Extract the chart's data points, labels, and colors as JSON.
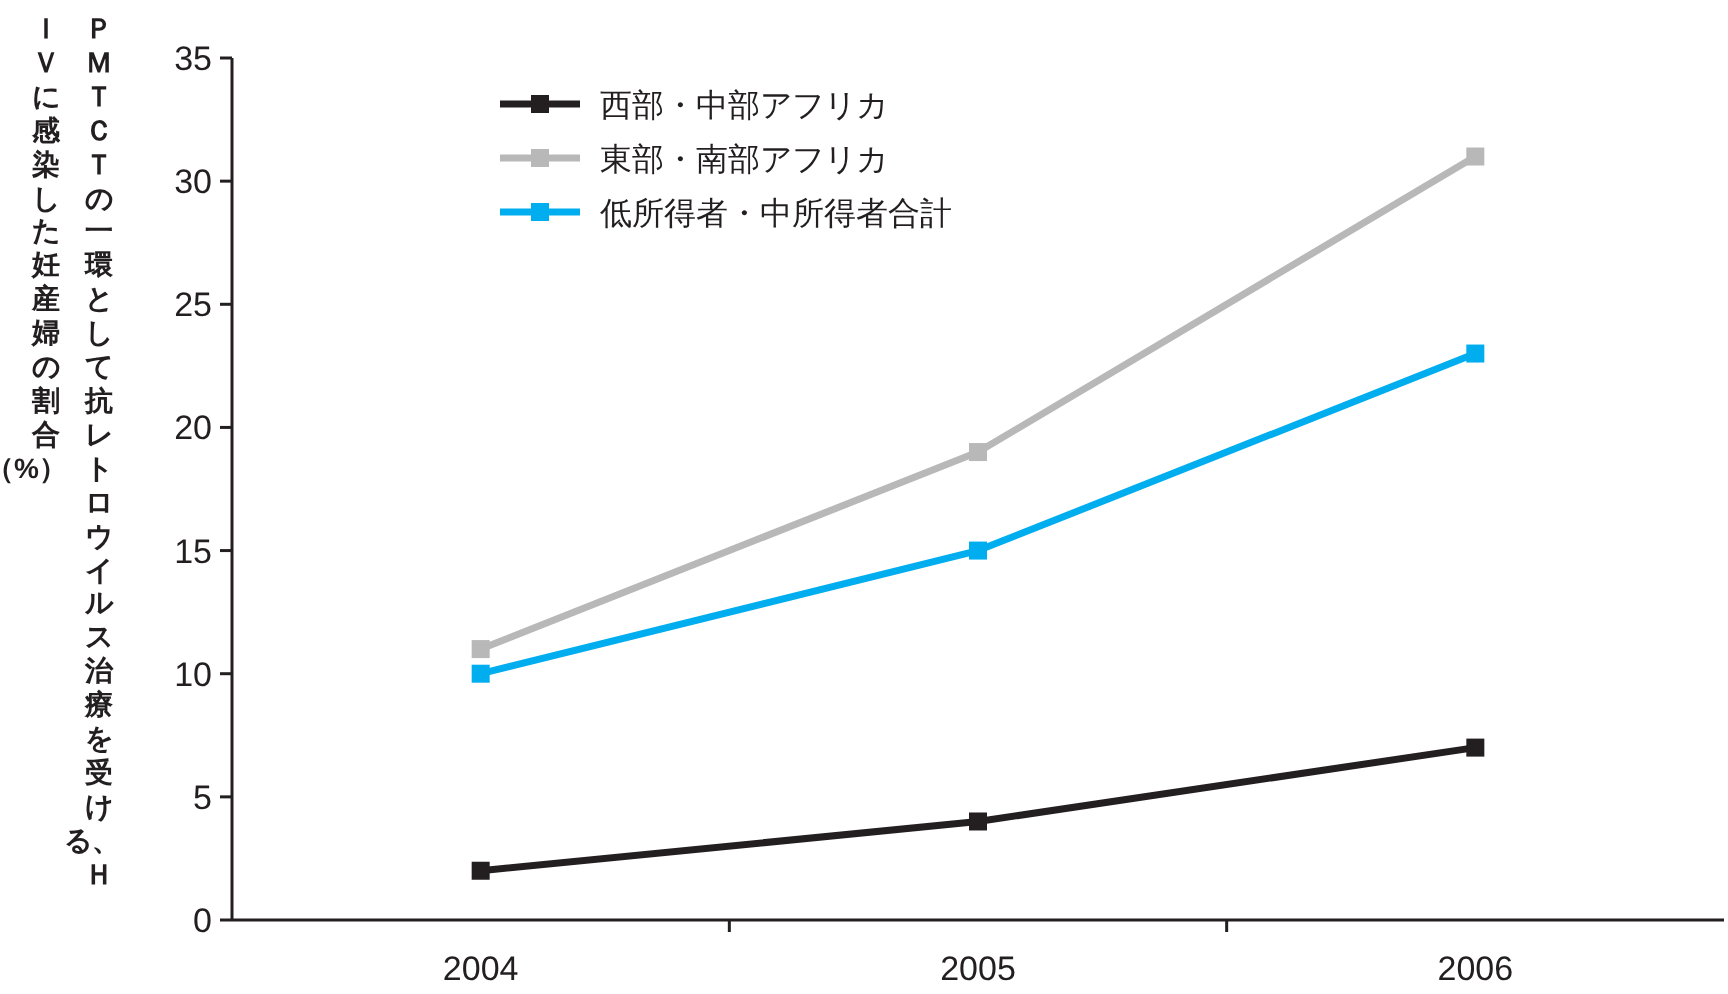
{
  "chart_data": {
    "type": "line",
    "ylabel": "ＰＭＴＣＴの一環として抗レトロウイルス治療を受ける、ＨＩＶに感染した妊産婦の割合（%）",
    "categories": [
      "2004",
      "2005",
      "2006"
    ],
    "series": [
      {
        "name": "西部・中部アフリカ",
        "color": "#231f20",
        "values": [
          2,
          4,
          7
        ]
      },
      {
        "name": "東部・南部アフリカ",
        "color": "#b8b8b8",
        "values": [
          11,
          19,
          31
        ]
      },
      {
        "name": "低所得者・中所得者合計",
        "color": "#00aeef",
        "values": [
          10,
          15,
          23
        ]
      }
    ],
    "ylim": [
      0,
      35
    ],
    "yticks": [
      0,
      5,
      10,
      15,
      20,
      25,
      30,
      35
    ],
    "legend": "top left",
    "marker": "square",
    "line_style": "solid",
    "grid": false
  }
}
